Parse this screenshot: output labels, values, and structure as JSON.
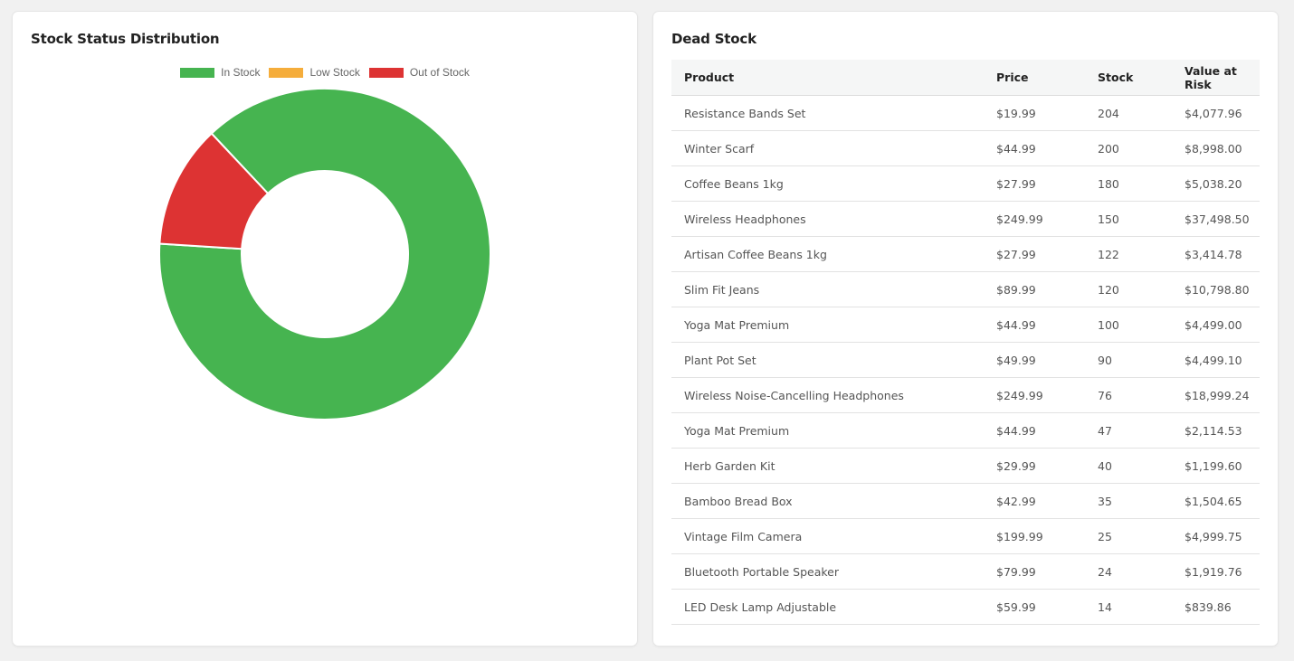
{
  "stock_status": {
    "title": "Stock Status Distribution",
    "colors": {
      "in_stock": "#46b450",
      "low_stock": "#f5ad3b",
      "out_of_stock": "#dd3333"
    },
    "chart_data": {
      "type": "pie",
      "title": "",
      "legend_position": "top",
      "categories": [
        "In Stock",
        "Low Stock",
        "Out of Stock"
      ],
      "values": [
        88,
        0,
        12
      ],
      "donut": true
    }
  },
  "dead_stock": {
    "title": "Dead Stock",
    "columns": [
      "Product",
      "Price",
      "Stock",
      "Value at Risk"
    ],
    "rows": [
      [
        "Resistance Bands Set",
        "$19.99",
        "204",
        "$4,077.96"
      ],
      [
        "Winter Scarf",
        "$44.99",
        "200",
        "$8,998.00"
      ],
      [
        "Coffee Beans 1kg",
        "$27.99",
        "180",
        "$5,038.20"
      ],
      [
        "Wireless Headphones",
        "$249.99",
        "150",
        "$37,498.50"
      ],
      [
        "Artisan Coffee Beans 1kg",
        "$27.99",
        "122",
        "$3,414.78"
      ],
      [
        "Slim Fit Jeans",
        "$89.99",
        "120",
        "$10,798.80"
      ],
      [
        "Yoga Mat Premium",
        "$44.99",
        "100",
        "$4,499.00"
      ],
      [
        "Plant Pot Set",
        "$49.99",
        "90",
        "$4,499.10"
      ],
      [
        "Wireless Noise-Cancelling Headphones",
        "$249.99",
        "76",
        "$18,999.24"
      ],
      [
        "Yoga Mat Premium",
        "$44.99",
        "47",
        "$2,114.53"
      ],
      [
        "Herb Garden Kit",
        "$29.99",
        "40",
        "$1,199.60"
      ],
      [
        "Bamboo Bread Box",
        "$42.99",
        "35",
        "$1,504.65"
      ],
      [
        "Vintage Film Camera",
        "$199.99",
        "25",
        "$4,999.75"
      ],
      [
        "Bluetooth Portable Speaker",
        "$79.99",
        "24",
        "$1,919.76"
      ],
      [
        "LED Desk Lamp Adjustable",
        "$59.99",
        "14",
        "$839.86"
      ]
    ]
  }
}
